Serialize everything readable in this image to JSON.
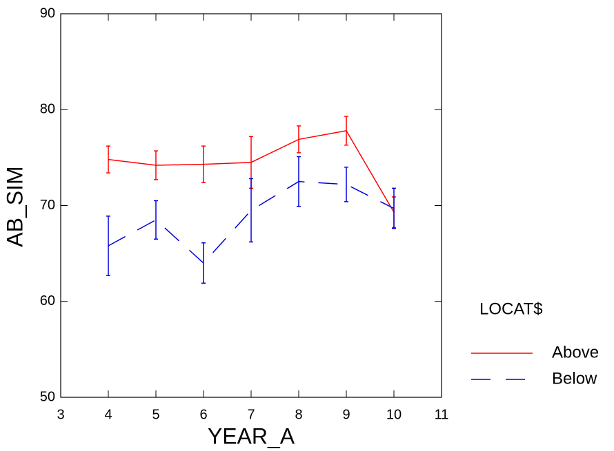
{
  "chart_data": {
    "type": "line",
    "x_label": "YEAR_A",
    "y_label": "AB_SIM",
    "legend_title": "LOCAT$",
    "x": [
      4,
      5,
      6,
      7,
      8,
      9,
      10
    ],
    "series": [
      {
        "name": "Above",
        "color": "#ff0000",
        "line_style": "solid",
        "values": [
          74.8,
          74.2,
          74.3,
          74.5,
          76.9,
          77.8,
          69.3
        ],
        "errors": [
          1.4,
          1.5,
          1.9,
          2.7,
          1.4,
          1.5,
          1.6
        ]
      },
      {
        "name": "Below",
        "color": "#0000dd",
        "line_style": "dashed",
        "values": [
          65.8,
          68.5,
          64.0,
          69.5,
          72.5,
          72.2,
          69.7
        ],
        "errors": [
          3.1,
          2.0,
          2.1,
          3.3,
          2.6,
          1.8,
          2.1
        ]
      }
    ],
    "xlim": [
      3,
      11
    ],
    "xticks": [
      3,
      4,
      5,
      6,
      7,
      8,
      9,
      10,
      11
    ],
    "ylim": [
      50,
      90
    ],
    "yticks": [
      50,
      60,
      70,
      80,
      90
    ],
    "grid": false
  }
}
